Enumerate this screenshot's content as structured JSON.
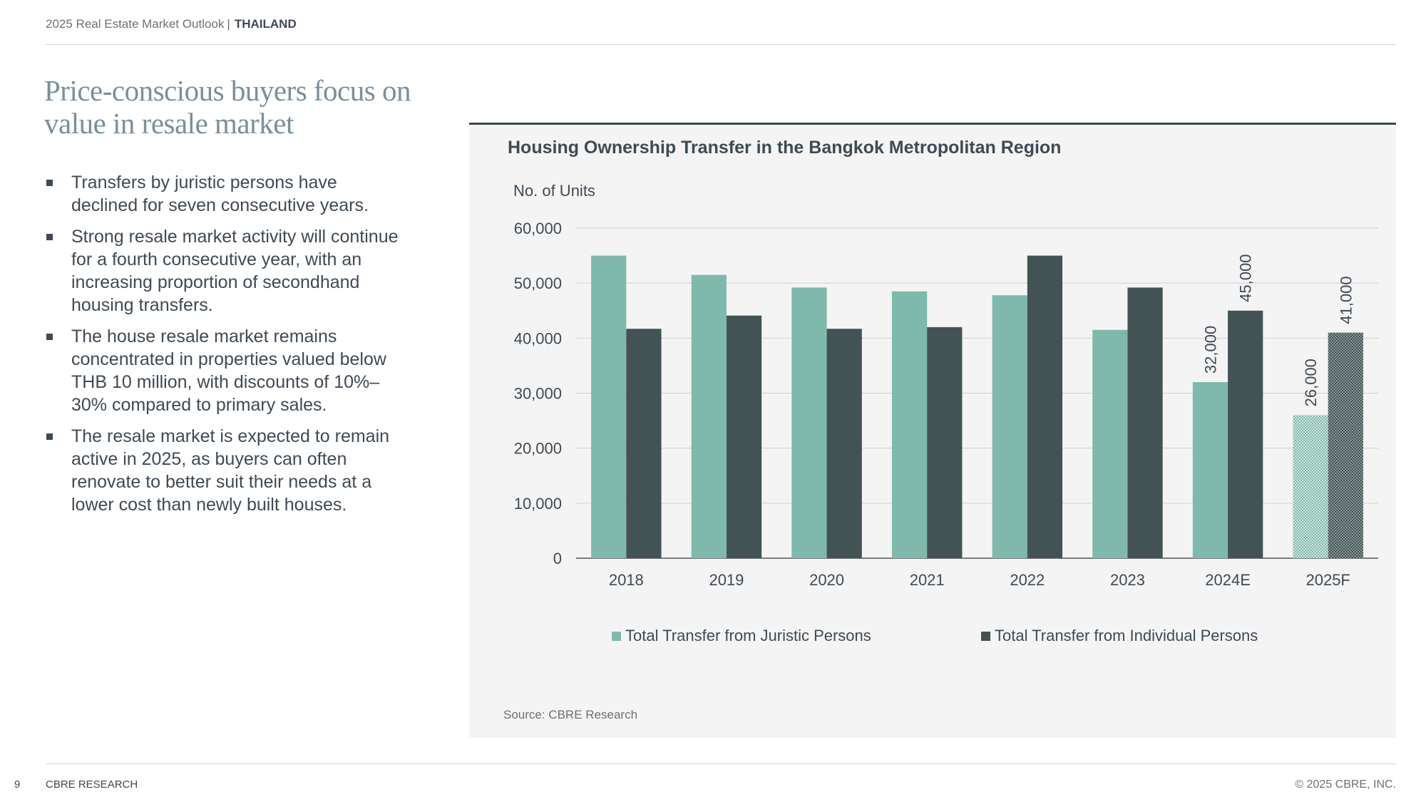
{
  "header": {
    "report": "2025 Real Estate Market Outlook",
    "separator": "|",
    "country": "THAILAND"
  },
  "page_title": "Price-conscious buyers focus on value in resale market",
  "bullets": [
    "Transfers by juristic persons have declined for seven consecutive years.",
    "Strong resale market activity will continue for a fourth consecutive year, with an increasing proportion of secondhand housing transfers.",
    "The house resale market remains concentrated in properties valued below THB 10 million, with discounts of 10%–30% compared to primary sales.",
    "The resale market is expected to remain active in 2025, as buyers can often renovate to better suit their needs at a lower cost than newly built houses."
  ],
  "source": "Source: CBRE Research",
  "footer": {
    "page_number": "9",
    "brand": "CBRE RESEARCH",
    "copyright": "© 2025 CBRE, INC."
  },
  "colors": {
    "juristic": "#7fb9ab",
    "individual": "#435354",
    "panel_bg": "#f4f4f4",
    "title": "#7a8f9c"
  },
  "chart_data": {
    "type": "bar",
    "title": "Housing Ownership Transfer in the Bangkok Metropolitan Region",
    "xlabel": "",
    "ylabel": "No. of Units",
    "ylim": [
      0,
      60000
    ],
    "yticks": [
      0,
      10000,
      20000,
      30000,
      40000,
      50000,
      60000
    ],
    "grid": true,
    "legend_position": "bottom",
    "categories": [
      "2018",
      "2019",
      "2020",
      "2021",
      "2022",
      "2023",
      "2024E",
      "2025F"
    ],
    "series": [
      {
        "name": "Total Transfer from Juristic Persons",
        "values": [
          55000,
          51500,
          49200,
          48500,
          47800,
          41500,
          32000,
          26000
        ],
        "data_labels": [
          null,
          null,
          null,
          null,
          null,
          null,
          "32,000",
          "26,000"
        ]
      },
      {
        "name": "Total Transfer from Individual Persons",
        "values": [
          41700,
          44100,
          41700,
          42000,
          55000,
          49200,
          45000,
          41000
        ],
        "data_labels": [
          null,
          null,
          null,
          null,
          null,
          null,
          "45,000",
          "41,000"
        ]
      }
    ],
    "hatched_categories": [
      "2025F"
    ]
  }
}
